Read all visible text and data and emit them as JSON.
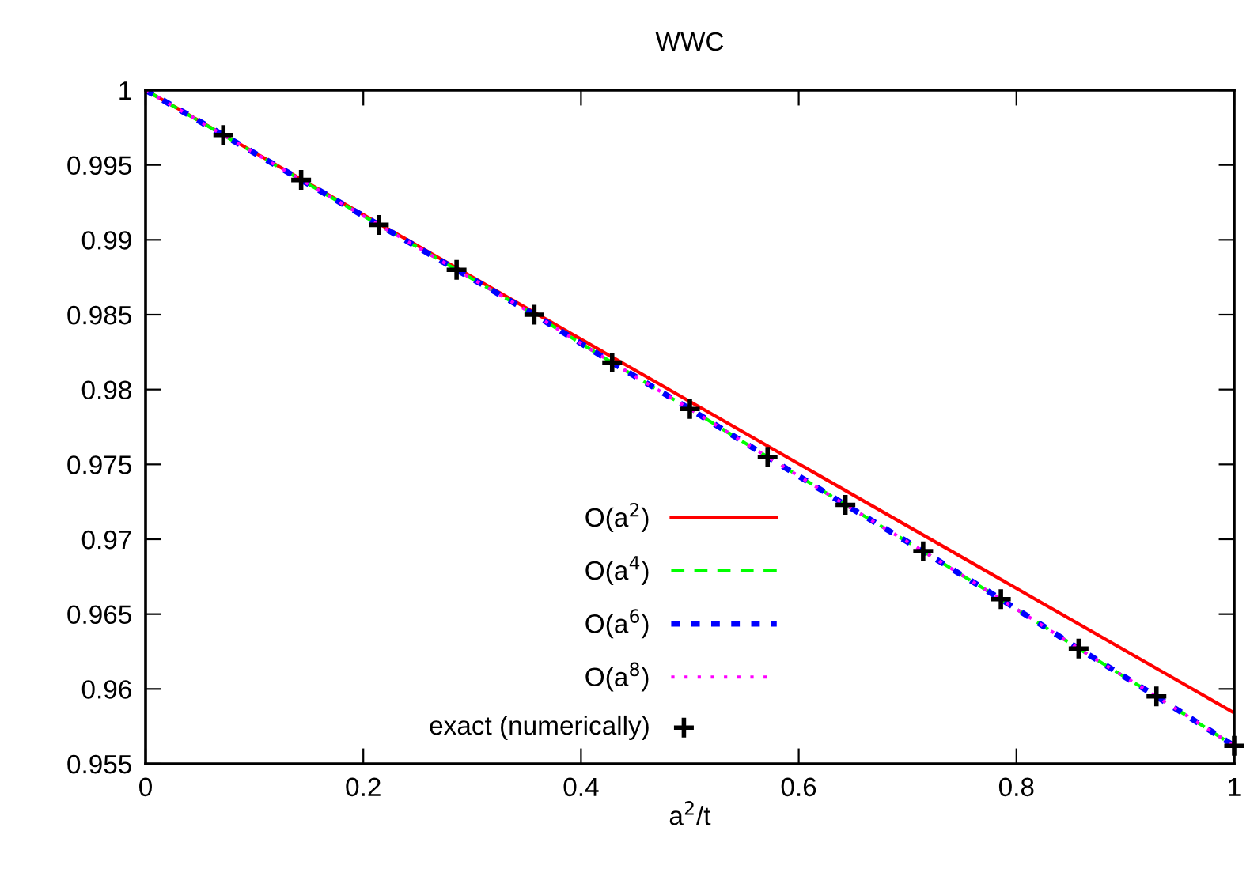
{
  "chart_data": {
    "type": "line",
    "title": "WWC",
    "xlabel": "a$^{2}$/t",
    "xlim": [
      0,
      1
    ],
    "xticks": [
      0,
      0.2,
      0.4,
      0.6,
      0.8,
      1
    ],
    "ylim": [
      0.955,
      1
    ],
    "yticks": [
      0.955,
      0.96,
      0.965,
      0.97,
      0.975,
      0.98,
      0.985,
      0.99,
      0.995,
      1
    ],
    "grid": false,
    "legend": "bottom",
    "series": [
      {
        "name": "O(a$^{2}$)",
        "color": "#ff0000",
        "line_style": "solid",
        "x": [
          0,
          1
        ],
        "values": [
          1,
          0.9584
        ]
      },
      {
        "name": "O(a$^{4}$)",
        "color": "#00ff00",
        "line_style": "dashed",
        "x": [
          0,
          0.0714,
          0.1429,
          0.2143,
          0.2857,
          0.3571,
          0.4286,
          0.5,
          0.5714,
          0.6429,
          0.7143,
          0.7857,
          0.8571,
          0.9286,
          1
        ],
        "values": [
          1,
          0.997,
          0.994,
          0.991,
          0.988,
          0.985,
          0.9818,
          0.9787,
          0.9755,
          0.9723,
          0.9692,
          0.966,
          0.9627,
          0.9595,
          0.9562
        ]
      },
      {
        "name": "O(a$^{6}$)",
        "color": "#0000ff",
        "line_style": "dotted",
        "x": [
          0,
          0.0714,
          0.1429,
          0.2143,
          0.2857,
          0.3571,
          0.4286,
          0.5,
          0.5714,
          0.6429,
          0.7143,
          0.7857,
          0.8571,
          0.9286,
          1
        ],
        "values": [
          1,
          0.997,
          0.994,
          0.991,
          0.988,
          0.985,
          0.9818,
          0.9787,
          0.9755,
          0.9723,
          0.9692,
          0.966,
          0.9627,
          0.9595,
          0.9562
        ]
      },
      {
        "name": "O(a$^{8}$)",
        "color": "#ff00ff",
        "line_style": "dotted",
        "x": [
          0,
          0.0714,
          0.1429,
          0.2143,
          0.2857,
          0.3571,
          0.4286,
          0.5,
          0.5714,
          0.6429,
          0.7143,
          0.7857,
          0.8571,
          0.9286,
          1
        ],
        "values": [
          1,
          0.997,
          0.994,
          0.991,
          0.988,
          0.985,
          0.9818,
          0.9787,
          0.9755,
          0.9723,
          0.9692,
          0.966,
          0.9627,
          0.9595,
          0.9562
        ]
      },
      {
        "name": "exact (numerically)",
        "type": "scatter",
        "marker": "cross",
        "color": "#000000",
        "x": [
          0.0714,
          0.1429,
          0.2143,
          0.2857,
          0.3571,
          0.4286,
          0.5,
          0.5714,
          0.6429,
          0.7143,
          0.7857,
          0.8571,
          0.9286,
          1
        ],
        "values": [
          0.997,
          0.994,
          0.991,
          0.988,
          0.985,
          0.9818,
          0.9787,
          0.9755,
          0.9723,
          0.9692,
          0.966,
          0.9627,
          0.9595,
          0.9562
        ]
      }
    ]
  }
}
